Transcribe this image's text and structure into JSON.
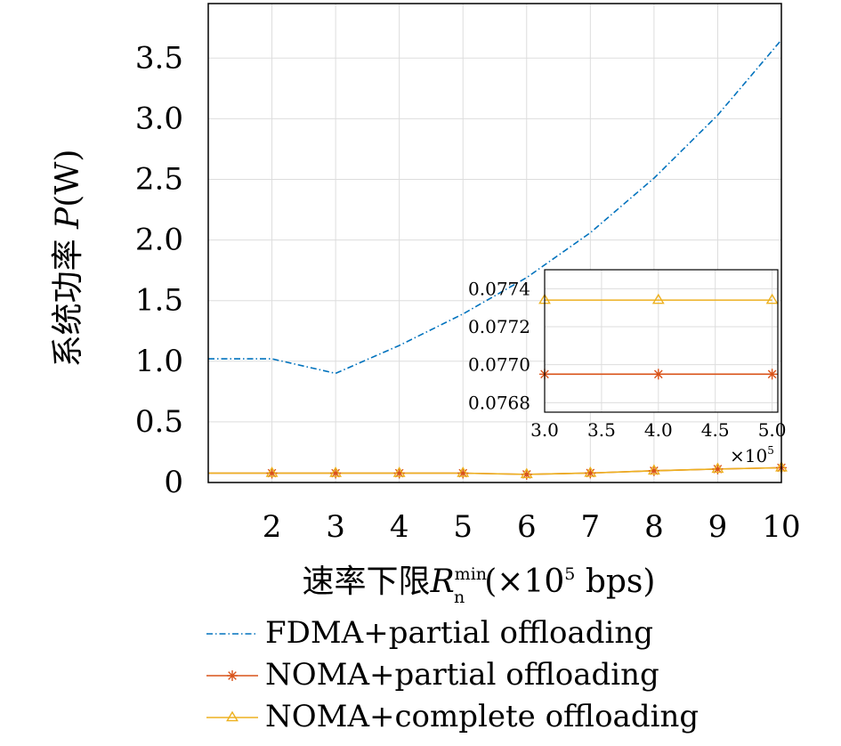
{
  "chart_data": [
    {
      "type": "line",
      "xlabel_text": "速率下限",
      "xlabel_symbol": "R",
      "xlabel_sub": "n",
      "xlabel_sup": "min",
      "xlabel_units_prefix": "(×10",
      "xlabel_units_exp": "5",
      "xlabel_units_suffix": " bps)",
      "ylabel_text": "系统功率 ",
      "ylabel_symbol": "P",
      "ylabel_units": "(W)",
      "xlim": [
        1,
        10
      ],
      "ylim": [
        0,
        3.95
      ],
      "xticks": [
        2,
        3,
        4,
        5,
        6,
        7,
        8,
        9,
        10
      ],
      "xtick_labels": [
        "2",
        "3",
        "4",
        "5",
        "6",
        "7",
        "8",
        "9",
        "10"
      ],
      "yticks": [
        0,
        0.5,
        1.0,
        1.5,
        2.0,
        2.5,
        3.0,
        3.5
      ],
      "ytick_labels": [
        "0",
        "0.5",
        "1.0",
        "1.5",
        "2.0",
        "2.5",
        "3.0",
        "3.5"
      ],
      "grid": true,
      "legend_position": "below",
      "x": [
        1,
        2,
        3,
        4,
        5,
        6,
        7,
        8,
        9,
        10
      ],
      "series": [
        {
          "name": "FDMA+partial offloading",
          "color": "#0072bd",
          "line_style": "dash-dot",
          "marker": "none",
          "values": [
            1.02,
            1.02,
            0.9,
            1.13,
            1.39,
            1.69,
            2.06,
            2.51,
            3.03,
            3.65
          ]
        },
        {
          "name": "NOMA+partial offloading",
          "color": "#d95319",
          "line_style": "solid",
          "marker": "asterisk",
          "values": [
            0.077,
            0.077,
            0.077,
            0.077,
            0.077,
            0.067,
            0.078,
            0.097,
            0.111,
            0.122
          ]
        },
        {
          "name": "NOMA+complete offloading",
          "color": "#edb120",
          "line_style": "solid",
          "marker": "triangle",
          "values": [
            0.077,
            0.077,
            0.077,
            0.077,
            0.077,
            0.067,
            0.078,
            0.097,
            0.111,
            0.122
          ]
        }
      ]
    },
    {
      "type": "line",
      "role": "inset",
      "xlim": [
        3.0,
        5.05
      ],
      "ylim": [
        0.07675,
        0.0775
      ],
      "xticks": [
        3.0,
        3.5,
        4.0,
        4.5,
        5.0
      ],
      "xtick_labels": [
        "3.0",
        "3.5",
        "4.0",
        "4.5",
        "5.0"
      ],
      "yticks": [
        0.0768,
        0.077,
        0.0772,
        0.0774
      ],
      "ytick_labels": [
        "0.0768",
        "0.0770",
        "0.0772",
        "0.0774"
      ],
      "x_multiplier_prefix": "×10",
      "x_multiplier_exp": "5",
      "grid": true,
      "x": [
        3.0,
        4.0,
        5.0
      ],
      "series": [
        {
          "name": "NOMA+partial offloading",
          "color": "#d95319",
          "marker": "asterisk",
          "values": [
            0.07695,
            0.07695,
            0.07695
          ]
        },
        {
          "name": "NOMA+complete offloading",
          "color": "#edb120",
          "marker": "triangle",
          "values": [
            0.07734,
            0.07734,
            0.07734
          ]
        }
      ]
    }
  ]
}
